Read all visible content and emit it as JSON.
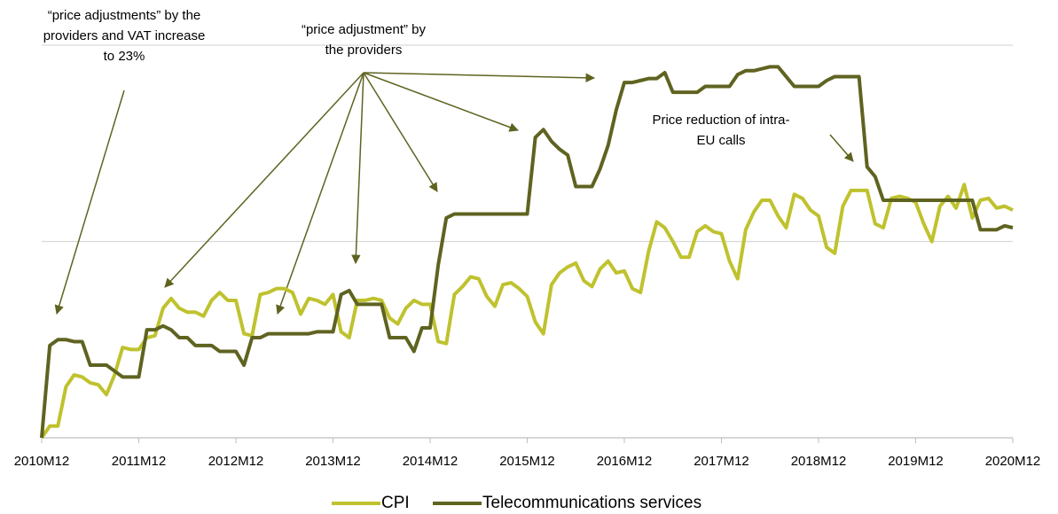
{
  "chart_data": {
    "type": "line",
    "x": [
      "2010M12",
      null,
      null,
      null,
      null,
      null,
      null,
      null,
      null,
      null,
      null,
      null,
      "2011M12",
      null,
      null,
      null,
      null,
      null,
      null,
      null,
      null,
      null,
      null,
      null,
      "2012M12",
      null,
      null,
      null,
      null,
      null,
      null,
      null,
      null,
      null,
      null,
      null,
      "2013M12",
      null,
      null,
      null,
      null,
      null,
      null,
      null,
      null,
      null,
      null,
      null,
      "2014M12",
      null,
      null,
      null,
      null,
      null,
      null,
      null,
      null,
      null,
      null,
      null,
      "2015M12",
      null,
      null,
      null,
      null,
      null,
      null,
      null,
      null,
      null,
      null,
      null,
      "2016M12",
      null,
      null,
      null,
      null,
      null,
      null,
      null,
      null,
      null,
      null,
      null,
      "2017M12",
      null,
      null,
      null,
      null,
      null,
      null,
      null,
      null,
      null,
      null,
      null,
      "2018M12",
      null,
      null,
      null,
      null,
      null,
      null,
      null,
      null,
      null,
      null,
      null,
      "2019M12",
      null,
      null,
      null,
      null,
      null,
      null,
      null,
      null,
      null,
      null,
      null,
      "2020M12"
    ],
    "series": [
      {
        "name": "CPI",
        "color": "#bfc22e",
        "values": [
          0,
          0.6,
          0.6,
          2.6,
          3.2,
          3.1,
          2.8,
          2.7,
          2.2,
          3.2,
          4.6,
          4.5,
          4.5,
          5.1,
          5.2,
          6.6,
          7.1,
          6.6,
          6.4,
          6.4,
          6.2,
          7.0,
          7.4,
          7.0,
          7.0,
          5.3,
          5.2,
          7.3,
          7.4,
          7.6,
          7.6,
          7.4,
          6.3,
          7.1,
          7.0,
          6.8,
          7.3,
          5.4,
          5.1,
          7.0,
          7.0,
          7.1,
          7.0,
          6.1,
          5.8,
          6.6,
          7.0,
          6.8,
          6.8,
          4.9,
          4.8,
          7.3,
          7.7,
          8.2,
          8.1,
          7.2,
          6.7,
          7.8,
          7.9,
          7.6,
          7.2,
          5.9,
          5.3,
          7.8,
          8.4,
          8.7,
          8.9,
          8.0,
          7.7,
          8.6,
          9.0,
          8.4,
          8.5,
          7.6,
          7.4,
          9.5,
          11.0,
          10.7,
          10.0,
          9.2,
          9.2,
          10.5,
          10.8,
          10.5,
          10.4,
          9.0,
          8.1,
          10.6,
          11.5,
          12.1,
          12.1,
          11.3,
          10.7,
          12.4,
          12.2,
          11.6,
          11.3,
          9.7,
          9.4,
          11.8,
          12.6,
          12.6,
          12.6,
          10.9,
          10.7,
          12.2,
          12.3,
          12.2,
          12.0,
          10.9,
          10.0,
          11.8,
          12.3,
          11.7,
          12.9,
          11.2,
          12.1,
          12.2,
          11.7,
          11.8,
          11.6
        ]
      },
      {
        "name": "Telecommunications services",
        "color": "#5f6320",
        "values": [
          0,
          4.7,
          5.0,
          5.0,
          4.9,
          4.9,
          3.7,
          3.7,
          3.7,
          3.4,
          3.1,
          3.1,
          3.1,
          5.5,
          5.5,
          5.7,
          5.5,
          5.1,
          5.1,
          4.7,
          4.7,
          4.7,
          4.4,
          4.4,
          4.4,
          3.7,
          5.1,
          5.1,
          5.3,
          5.3,
          5.3,
          5.3,
          5.3,
          5.3,
          5.4,
          5.4,
          5.4,
          7.3,
          7.5,
          6.8,
          6.8,
          6.8,
          6.8,
          5.1,
          5.1,
          5.1,
          4.4,
          5.6,
          5.6,
          8.8,
          11.2,
          11.4,
          11.4,
          11.4,
          11.4,
          11.4,
          11.4,
          11.4,
          11.4,
          11.4,
          11.4,
          15.3,
          15.7,
          15.1,
          14.7,
          14.4,
          12.8,
          12.8,
          12.8,
          13.7,
          14.9,
          16.7,
          18.1,
          18.1,
          18.2,
          18.3,
          18.3,
          18.6,
          17.6,
          17.6,
          17.6,
          17.6,
          17.9,
          17.9,
          17.9,
          17.9,
          18.5,
          18.7,
          18.7,
          18.8,
          18.9,
          18.9,
          18.4,
          17.9,
          17.9,
          17.9,
          17.9,
          18.2,
          18.4,
          18.4,
          18.4,
          18.4,
          13.8,
          13.3,
          12.1,
          12.1,
          12.1,
          12.1,
          12.1,
          12.1,
          12.1,
          12.1,
          12.1,
          12.1,
          12.1,
          12.1,
          10.6,
          10.6,
          10.6,
          10.8,
          10.7
        ]
      }
    ],
    "ylim": [
      0,
      20
    ],
    "gridlines": [
      10,
      20
    ],
    "annotations": [
      {
        "lines": [
          "“price adjustments” by the",
          "providers and VAT increase",
          "to 23%"
        ]
      },
      {
        "lines": [
          "“price adjustment” by",
          "the providers"
        ]
      },
      {
        "lines": [
          "Price reduction of intra-",
          "EU calls"
        ]
      }
    ]
  }
}
